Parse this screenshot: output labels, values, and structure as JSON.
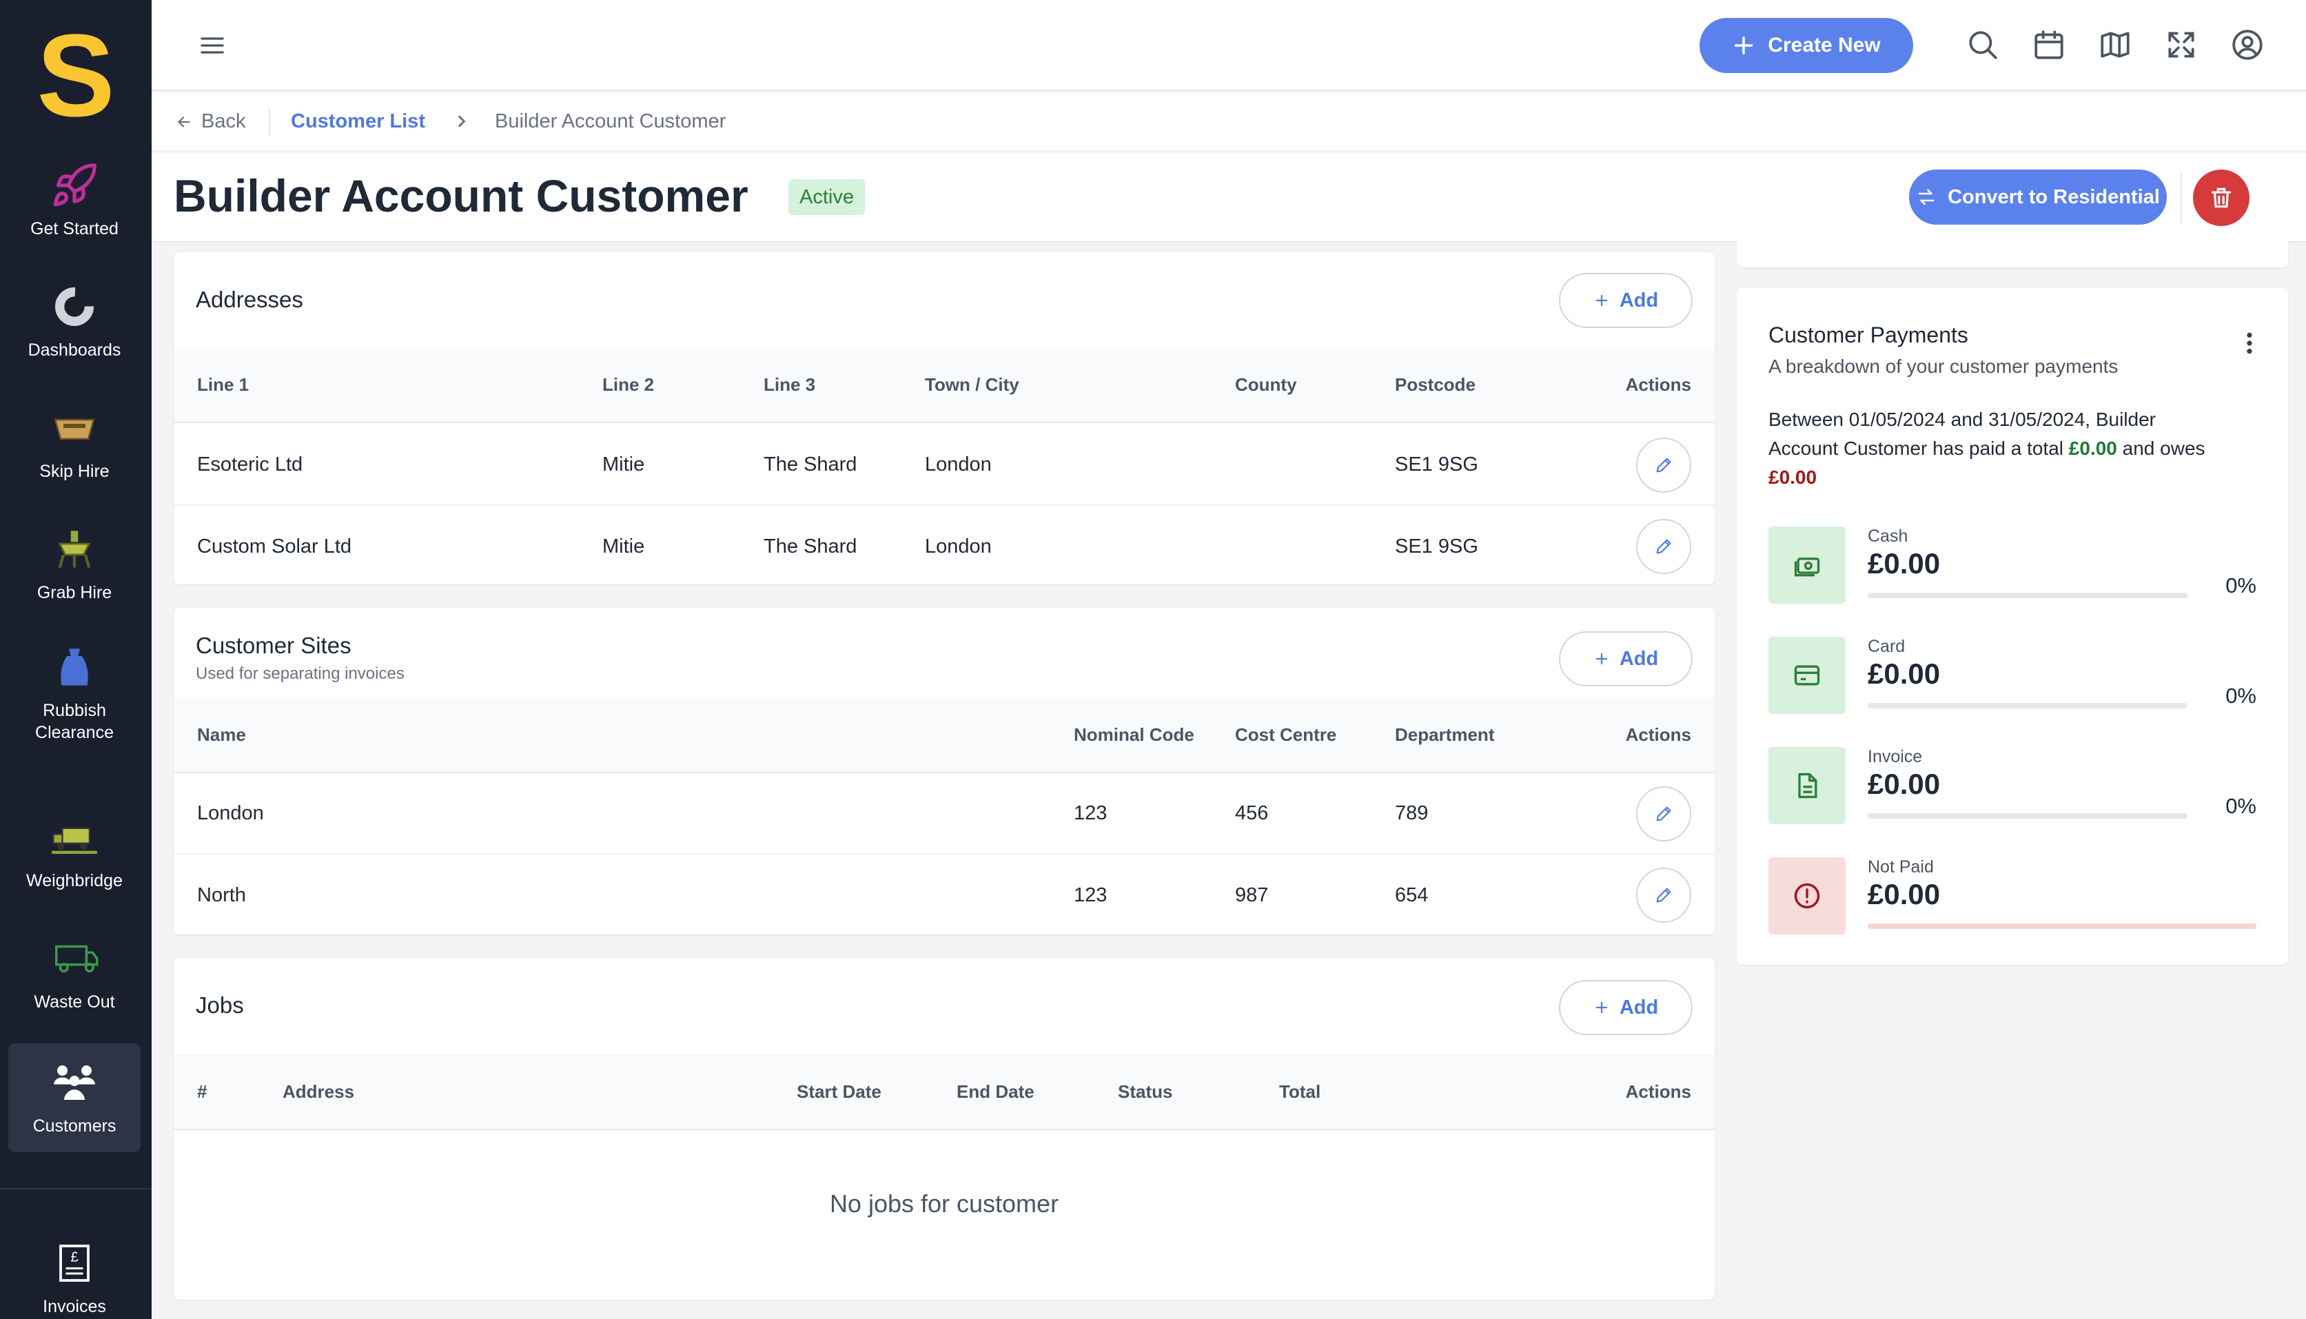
{
  "app": {
    "logo_letter": "S"
  },
  "sidebar": {
    "items": [
      {
        "label": "Get Started",
        "icon": "rocket-icon",
        "color": "#c02f9a"
      },
      {
        "label": "Dashboards",
        "icon": "donut-chart-icon",
        "color": "#d1d5db"
      },
      {
        "label": "Skip Hire",
        "icon": "skip-icon",
        "color": "#c8a15a"
      },
      {
        "label": "Grab Hire",
        "icon": "grab-icon",
        "color": "#9aa83a"
      },
      {
        "label": "Rubbish Clearance",
        "icon": "rubbish-bag-icon",
        "color": "#4a6fd6"
      },
      {
        "label": "Weighbridge",
        "icon": "weighbridge-truck-icon",
        "color": "#8fa83a"
      },
      {
        "label": "Waste Out",
        "icon": "waste-truck-icon",
        "color": "#3a9a4a"
      },
      {
        "label": "Customers",
        "icon": "customers-icon",
        "color": "#ffffff",
        "active": true
      },
      {
        "label": "Invoices",
        "icon": "invoice-icon",
        "color": "#ffffff"
      }
    ]
  },
  "topbar": {
    "create_label": "Create New"
  },
  "breadcrumb": {
    "back": "Back",
    "list": "Customer List",
    "current": "Builder Account Customer"
  },
  "header": {
    "title": "Builder Account Customer",
    "status": "Active",
    "convert_label": "Convert to Residential"
  },
  "addresses": {
    "title": "Addresses",
    "add_label": "Add",
    "columns": [
      "Line 1",
      "Line 2",
      "Line 3",
      "Town / City",
      "County",
      "Postcode",
      "Actions"
    ],
    "rows": [
      {
        "line1": "Esoteric Ltd",
        "line2": "Mitie",
        "line3": "The Shard",
        "town": "London",
        "county": "",
        "postcode": "SE1 9SG"
      },
      {
        "line1": "Custom Solar Ltd",
        "line2": "Mitie",
        "line3": "The Shard",
        "town": "London",
        "county": "",
        "postcode": "SE1 9SG"
      }
    ]
  },
  "sites": {
    "title": "Customer Sites",
    "subtitle": "Used for separating invoices",
    "add_label": "Add",
    "columns": [
      "Name",
      "Nominal Code",
      "Cost Centre",
      "Department",
      "Actions"
    ],
    "rows": [
      {
        "name": "London",
        "nominal": "123",
        "cost": "456",
        "dept": "789"
      },
      {
        "name": "North",
        "nominal": "123",
        "cost": "987",
        "dept": "654"
      }
    ]
  },
  "jobs": {
    "title": "Jobs",
    "add_label": "Add",
    "columns": [
      "#",
      "Address",
      "Start Date",
      "End Date",
      "Status",
      "Total",
      "Actions"
    ],
    "empty": "No jobs for customer"
  },
  "payments": {
    "title": "Customer Payments",
    "subtitle": "A breakdown of your customer payments",
    "summary_line1": "Between 01/05/2024 and 31/05/2024, Builder",
    "summary_line2_pre": "Account Customer has paid a total ",
    "paid": "£0.00",
    "summary_line2_mid": " and owes",
    "owes": "£0.00",
    "paid_color": "#1e7a34",
    "owes_color": "#a31919",
    "items": [
      {
        "label": "Cash",
        "amount": "£0.00",
        "pct": "0%",
        "fraction": 0,
        "icon": "cash-icon"
      },
      {
        "label": "Card",
        "amount": "£0.00",
        "pct": "0%",
        "fraction": 0,
        "icon": "card-icon"
      },
      {
        "label": "Invoice",
        "amount": "£0.00",
        "pct": "0%",
        "fraction": 0,
        "icon": "document-icon"
      },
      {
        "label": "Not Paid",
        "amount": "£0.00",
        "fraction": 0,
        "icon": "alert-icon"
      }
    ]
  }
}
